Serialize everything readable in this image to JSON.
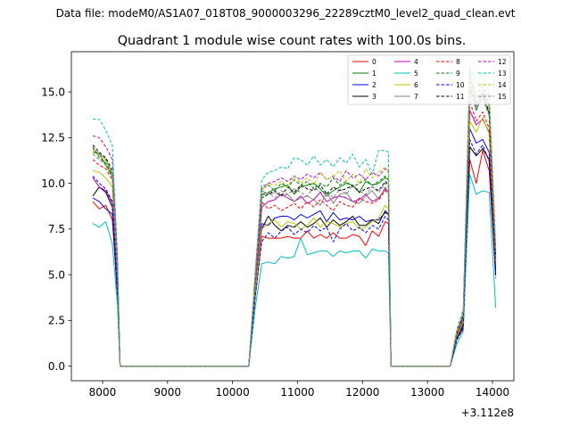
{
  "figure": {
    "suptitle": "Data file: modeM0/AS1A07_018T08_9000003296_22289cztM0_level2_quad_clean.evt"
  },
  "chart_data": {
    "type": "line",
    "title": "Quadrant 1 module wise count rates with 100.0s bins.",
    "xlabel": "",
    "ylabel": "",
    "x_offset_label": "+3.112e8",
    "xlim": [
      7520,
      14330
    ],
    "ylim": [
      -0.8,
      17.2
    ],
    "xticks": [
      8000,
      9000,
      10000,
      11000,
      12000,
      13000,
      14000
    ],
    "xtick_labels": [
      "8000",
      "9000",
      "10000",
      "11000",
      "12000",
      "13000",
      "14000"
    ],
    "yticks": [
      0,
      2.5,
      5,
      7.5,
      10,
      12.5,
      15
    ],
    "ytick_labels": [
      "0.0",
      "2.5",
      "5.0",
      "7.5",
      "10.0",
      "12.5",
      "15.0"
    ],
    "grid": false,
    "legend_position": "top-right",
    "legend_columns": 4,
    "x_segments": [
      [
        7850,
        7950,
        8050,
        8150,
        8230,
        8270,
        8350,
        8450,
        8550,
        8650,
        8750,
        8850,
        8950,
        9050,
        9150,
        9250,
        9350,
        9450,
        9550,
        9650,
        9750,
        9850,
        9950,
        10050,
        10150,
        10250,
        10350,
        10450,
        10550,
        10650,
        10750,
        10850,
        10950,
        11050,
        11150,
        11250,
        11350,
        11450,
        11550,
        11650,
        11750,
        11850,
        11950,
        12050,
        12150,
        12250,
        12350,
        12400,
        12440,
        12550,
        12650,
        12750,
        12850,
        12950,
        13050,
        13150,
        13250,
        13350,
        13450,
        13550,
        13650,
        13750,
        13850,
        13950,
        14050
      ]
    ],
    "series": [
      {
        "name": "0",
        "color": "#ff0000",
        "dash": false,
        "values": [
          9.0,
          8.6,
          8.8,
          8.0,
          4.0,
          0,
          0,
          0,
          0,
          0,
          0,
          0,
          0,
          0,
          0,
          0,
          0,
          0,
          0,
          0,
          0,
          0,
          0,
          0,
          0,
          0,
          3.8,
          7.1,
          7.0,
          7.0,
          7.0,
          7.1,
          7.0,
          7.0,
          7.4,
          7.0,
          7.2,
          7.0,
          7.3,
          7.0,
          7.0,
          7.2,
          7.1,
          6.6,
          7.4,
          7.1,
          7.9,
          7.8,
          0,
          0,
          0,
          0,
          0,
          0,
          0,
          0,
          0,
          0,
          1.5,
          2.0,
          11.3,
          10.0,
          11.8,
          10.7,
          5.0
        ]
      },
      {
        "name": "1",
        "color": "#008000",
        "dash": false,
        "values": [
          11.7,
          11.6,
          11.0,
          10.4,
          5.5,
          0,
          0,
          0,
          0,
          0,
          0,
          0,
          0,
          0,
          0,
          0,
          0,
          0,
          0,
          0,
          0,
          0,
          0,
          0,
          0,
          0,
          4.5,
          9.4,
          9.5,
          9.7,
          9.8,
          9.9,
          9.4,
          9.8,
          9.9,
          10.0,
          9.7,
          9.3,
          9.6,
          9.8,
          10.0,
          9.9,
          9.5,
          10.1,
          9.9,
          10.0,
          10.3,
          10.2,
          0,
          0,
          0,
          0,
          0,
          0,
          0,
          0,
          0,
          0,
          1.8,
          2.8,
          15.2,
          14.0,
          14.8,
          13.8,
          6.3
        ]
      },
      {
        "name": "2",
        "color": "#0000ff",
        "dash": false,
        "values": [
          9.2,
          9.0,
          8.6,
          8.3,
          3.8,
          0,
          0,
          0,
          0,
          0,
          0,
          0,
          0,
          0,
          0,
          0,
          0,
          0,
          0,
          0,
          0,
          0,
          0,
          0,
          0,
          0,
          4.0,
          7.8,
          7.7,
          8.1,
          8.2,
          8.2,
          8.0,
          8.3,
          8.1,
          8.3,
          8.5,
          7.9,
          8.4,
          8.0,
          8.1,
          8.0,
          8.2,
          7.9,
          8.0,
          8.0,
          8.4,
          8.3,
          0,
          0,
          0,
          0,
          0,
          0,
          0,
          0,
          0,
          0,
          1.6,
          2.3,
          13.0,
          12.2,
          12.4,
          11.7,
          5.3
        ]
      },
      {
        "name": "3",
        "color": "#000000",
        "dash": false,
        "values": [
          9.3,
          9.8,
          9.5,
          8.7,
          4.0,
          0,
          0,
          0,
          0,
          0,
          0,
          0,
          0,
          0,
          0,
          0,
          0,
          0,
          0,
          0,
          0,
          0,
          0,
          0,
          0,
          0,
          3.9,
          7.5,
          8.2,
          7.7,
          7.4,
          7.7,
          7.6,
          7.9,
          7.6,
          7.8,
          8.1,
          7.6,
          8.0,
          7.7,
          7.9,
          8.2,
          7.7,
          7.7,
          8.0,
          7.8,
          8.5,
          8.3,
          0,
          0,
          0,
          0,
          0,
          0,
          0,
          0,
          0,
          0,
          1.5,
          2.2,
          12.0,
          11.5,
          11.9,
          11.3,
          5.0
        ]
      },
      {
        "name": "4",
        "color": "#bf00bf",
        "dash": false,
        "values": [
          10.3,
          9.8,
          9.6,
          8.9,
          4.3,
          0,
          0,
          0,
          0,
          0,
          0,
          0,
          0,
          0,
          0,
          0,
          0,
          0,
          0,
          0,
          0,
          0,
          0,
          0,
          0,
          0,
          4.3,
          8.7,
          9.0,
          9.1,
          9.4,
          9.2,
          9.0,
          9.3,
          8.9,
          9.1,
          9.5,
          9.0,
          9.2,
          9.3,
          9.2,
          9.0,
          9.1,
          9.4,
          9.0,
          9.2,
          9.7,
          9.5,
          0,
          0,
          0,
          0,
          0,
          0,
          0,
          0,
          0,
          0,
          1.7,
          2.5,
          14.0,
          13.2,
          13.5,
          12.8,
          5.8
        ]
      },
      {
        "name": "5",
        "color": "#00bfbf",
        "dash": false,
        "values": [
          7.8,
          7.6,
          7.9,
          6.7,
          3.3,
          0,
          0,
          0,
          0,
          0,
          0,
          0,
          0,
          0,
          0,
          0,
          0,
          0,
          0,
          0,
          0,
          0,
          0,
          0,
          0,
          0,
          3.2,
          5.6,
          5.7,
          5.6,
          6.0,
          5.9,
          6.0,
          7.0,
          6.1,
          6.2,
          6.3,
          6.3,
          6.0,
          6.3,
          6.2,
          6.3,
          6.3,
          5.9,
          6.4,
          6.3,
          6.3,
          6.2,
          0,
          0,
          0,
          0,
          0,
          0,
          0,
          0,
          0,
          0,
          1.2,
          1.9,
          10.5,
          9.4,
          9.6,
          9.5,
          3.2
        ]
      },
      {
        "name": "6",
        "color": "#bfbf00",
        "dash": false,
        "values": [
          10.7,
          10.6,
          10.3,
          9.8,
          4.6,
          0,
          0,
          0,
          0,
          0,
          0,
          0,
          0,
          0,
          0,
          0,
          0,
          0,
          0,
          0,
          0,
          0,
          0,
          0,
          0,
          0,
          4.0,
          7.5,
          7.8,
          8.0,
          7.6,
          7.9,
          7.8,
          7.5,
          7.7,
          8.1,
          7.6,
          7.9,
          7.8,
          7.6,
          7.8,
          7.9,
          7.5,
          7.6,
          7.9,
          8.1,
          8.8,
          8.6,
          0,
          0,
          0,
          0,
          0,
          0,
          0,
          0,
          0,
          0,
          1.6,
          2.4,
          13.4,
          12.8,
          13.6,
          12.7,
          5.6
        ]
      },
      {
        "name": "7",
        "color": "#808080",
        "dash": false,
        "values": [
          11.9,
          11.6,
          11.3,
          10.5,
          5.2,
          0,
          0,
          0,
          0,
          0,
          0,
          0,
          0,
          0,
          0,
          0,
          0,
          0,
          0,
          0,
          0,
          0,
          0,
          0,
          0,
          0,
          4.8,
          9.6,
          9.4,
          9.5,
          9.3,
          9.4,
          9.0,
          9.2,
          9.3,
          9.1,
          8.8,
          9.5,
          8.9,
          9.4,
          9.5,
          9.0,
          8.9,
          9.3,
          9.6,
          9.1,
          9.8,
          9.5,
          0,
          0,
          0,
          0,
          0,
          0,
          0,
          0,
          0,
          0,
          1.7,
          2.6,
          16.2,
          14.2,
          15.0,
          14.2,
          6.0
        ]
      },
      {
        "name": "8",
        "color": "#ff0000",
        "dash": true,
        "values": [
          11.3,
          11.0,
          10.8,
          10.2,
          5.0,
          0,
          0,
          0,
          0,
          0,
          0,
          0,
          0,
          0,
          0,
          0,
          0,
          0,
          0,
          0,
          0,
          0,
          0,
          0,
          0,
          0,
          4.5,
          9.0,
          8.6,
          8.8,
          8.5,
          8.7,
          8.9,
          8.6,
          9.0,
          8.7,
          9.1,
          8.8,
          8.5,
          9.0,
          8.8,
          8.7,
          9.2,
          9.0,
          8.9,
          9.1,
          9.6,
          9.4,
          0,
          0,
          0,
          0,
          0,
          0,
          0,
          0,
          0,
          0,
          1.7,
          2.5,
          14.5,
          13.4,
          13.9,
          13.0,
          5.6
        ]
      },
      {
        "name": "9",
        "color": "#008000",
        "dash": true,
        "values": [
          12.0,
          11.4,
          11.1,
          10.5,
          5.3,
          0,
          0,
          0,
          0,
          0,
          0,
          0,
          0,
          0,
          0,
          0,
          0,
          0,
          0,
          0,
          0,
          0,
          0,
          0,
          0,
          0,
          4.8,
          9.7,
          9.9,
          9.6,
          10.0,
          9.8,
          10.2,
          9.9,
          10.1,
          9.7,
          10.0,
          9.8,
          10.3,
          9.9,
          10.1,
          9.8,
          10.0,
          10.2,
          9.9,
          10.1,
          10.4,
          10.2,
          0,
          0,
          0,
          0,
          0,
          0,
          0,
          0,
          0,
          0,
          1.8,
          2.8,
          15.6,
          14.6,
          15.1,
          14.3,
          6.2
        ]
      },
      {
        "name": "10",
        "color": "#0000ff",
        "dash": true,
        "values": [
          10.4,
          10.0,
          9.7,
          9.0,
          4.4,
          0,
          0,
          0,
          0,
          0,
          0,
          0,
          0,
          0,
          0,
          0,
          0,
          0,
          0,
          0,
          0,
          0,
          0,
          0,
          0,
          0,
          3.8,
          6.8,
          7.3,
          7.0,
          7.4,
          7.6,
          7.2,
          7.5,
          7.3,
          7.7,
          7.4,
          7.6,
          6.8,
          7.5,
          7.8,
          7.4,
          7.6,
          7.3,
          7.7,
          7.5,
          8.2,
          8.0,
          0,
          0,
          0,
          0,
          0,
          0,
          0,
          0,
          0,
          0,
          1.4,
          2.1,
          12.4,
          11.6,
          12.1,
          11.2,
          4.8
        ]
      },
      {
        "name": "11",
        "color": "#000000",
        "dash": true,
        "values": [
          12.1,
          11.7,
          11.4,
          10.7,
          5.4,
          0,
          0,
          0,
          0,
          0,
          0,
          0,
          0,
          0,
          0,
          0,
          0,
          0,
          0,
          0,
          0,
          0,
          0,
          0,
          0,
          0,
          4.7,
          9.2,
          9.4,
          9.6,
          9.3,
          9.8,
          9.5,
          9.9,
          9.7,
          9.6,
          9.9,
          9.4,
          9.8,
          9.6,
          9.7,
          9.9,
          9.5,
          9.7,
          9.8,
          9.6,
          10.1,
          9.9,
          0,
          0,
          0,
          0,
          0,
          0,
          0,
          0,
          0,
          0,
          1.8,
          2.7,
          15.3,
          14.4,
          14.9,
          13.9,
          6.1
        ]
      },
      {
        "name": "12",
        "color": "#bf00bf",
        "dash": true,
        "values": [
          12.6,
          12.5,
          12.0,
          11.3,
          5.7,
          0,
          0,
          0,
          0,
          0,
          0,
          0,
          0,
          0,
          0,
          0,
          0,
          0,
          0,
          0,
          0,
          0,
          0,
          0,
          0,
          0,
          5.0,
          9.8,
          10.0,
          10.1,
          10.3,
          10.1,
          10.4,
          10.2,
          10.5,
          10.3,
          10.6,
          10.2,
          10.4,
          10.1,
          10.7,
          10.3,
          10.5,
          10.2,
          10.6,
          10.4,
          10.8,
          10.6,
          0,
          0,
          0,
          0,
          0,
          0,
          0,
          0,
          0,
          0,
          1.9,
          2.9,
          15.8,
          14.8,
          15.3,
          14.5,
          6.4
        ]
      },
      {
        "name": "13",
        "color": "#00bfbf",
        "dash": true,
        "values": [
          13.5,
          13.5,
          12.9,
          12.1,
          6.1,
          0,
          0,
          0,
          0,
          0,
          0,
          0,
          0,
          0,
          0,
          0,
          0,
          0,
          0,
          0,
          0,
          0,
          0,
          0,
          0,
          0,
          5.2,
          10.2,
          10.6,
          10.7,
          10.9,
          10.8,
          11.4,
          11.3,
          11.0,
          11.5,
          11.0,
          11.3,
          10.9,
          11.4,
          11.1,
          11.6,
          10.9,
          11.3,
          10.5,
          11.8,
          11.8,
          11.7,
          0,
          0,
          0,
          0,
          0,
          0,
          0,
          0,
          0,
          0,
          2.0,
          3.1,
          16.4,
          15.5,
          15.9,
          15.0,
          6.7
        ]
      },
      {
        "name": "14",
        "color": "#bfbf00",
        "dash": true,
        "values": [
          11.8,
          11.5,
          11.2,
          10.6,
          5.3,
          0,
          0,
          0,
          0,
          0,
          0,
          0,
          0,
          0,
          0,
          0,
          0,
          0,
          0,
          0,
          0,
          0,
          0,
          0,
          0,
          0,
          4.8,
          9.6,
          10.0,
          9.9,
          10.1,
          9.8,
          10.4,
          10.0,
          10.3,
          9.9,
          10.6,
          10.2,
          10.4,
          10.7,
          10.1,
          10.5,
          10.0,
          10.8,
          10.3,
          10.6,
          10.9,
          10.7,
          0,
          0,
          0,
          0,
          0,
          0,
          0,
          0,
          0,
          0,
          1.9,
          2.9,
          15.9,
          15.0,
          15.4,
          14.6,
          6.4
        ]
      },
      {
        "name": "15",
        "color": "#808080",
        "dash": true,
        "values": [
          11.6,
          11.3,
          11.0,
          10.3,
          5.1,
          0,
          0,
          0,
          0,
          0,
          0,
          0,
          0,
          0,
          0,
          0,
          0,
          0,
          0,
          0,
          0,
          0,
          0,
          0,
          0,
          0,
          4.6,
          9.3,
          9.5,
          9.2,
          9.6,
          9.4,
          9.7,
          9.5,
          9.3,
          9.8,
          9.5,
          9.6,
          9.2,
          9.7,
          9.4,
          9.9,
          9.6,
          9.4,
          9.8,
          9.5,
          10.0,
          9.8,
          0,
          0,
          0,
          0,
          0,
          0,
          0,
          0,
          0,
          0,
          1.8,
          2.6,
          15.0,
          14.1,
          14.6,
          13.7,
          6.0
        ]
      }
    ]
  }
}
